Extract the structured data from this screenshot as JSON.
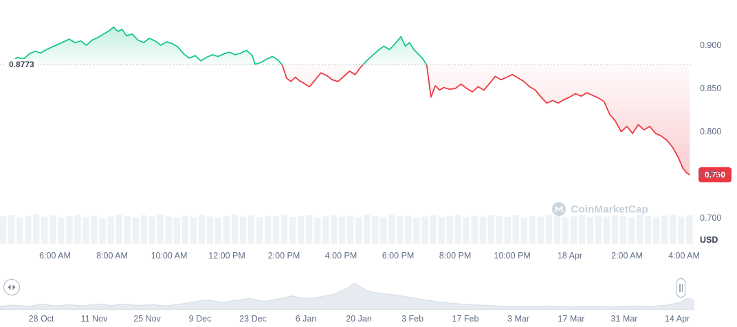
{
  "chart_data": {
    "type": "area",
    "title": "",
    "baseline": {
      "value": 0.8773,
      "label": "0.8773"
    },
    "current_price": {
      "value": 0.75,
      "label": "0.750"
    },
    "y_axis": {
      "ticks": [
        {
          "label": "0.900",
          "value": 0.9
        },
        {
          "label": "0.850",
          "value": 0.85
        },
        {
          "label": "0.800",
          "value": 0.8
        },
        {
          "label": "0.750",
          "value": 0.75
        },
        {
          "label": "0.700",
          "value": 0.7
        }
      ],
      "unit_label": "USD",
      "range": [
        0.695,
        0.925
      ]
    },
    "x_axis": {
      "labels": [
        "6:00 AM",
        "8:00 AM",
        "10:00 AM",
        "12:00 PM",
        "2:00 PM",
        "4:00 PM",
        "6:00 PM",
        "8:00 PM",
        "10:00 PM",
        "18 Apr",
        "2:00 AM",
        "4:00 AM"
      ],
      "hours": [
        2,
        4,
        6,
        8,
        10,
        12,
        14,
        16,
        18,
        20,
        22,
        24
      ]
    },
    "series": [
      {
        "name": "price",
        "points": [
          [
            0.3,
            0.8773
          ],
          [
            0.5,
            0.882
          ],
          [
            0.7,
            0.886
          ],
          [
            0.9,
            0.884
          ],
          [
            1.1,
            0.89
          ],
          [
            1.3,
            0.893
          ],
          [
            1.5,
            0.891
          ],
          [
            1.7,
            0.895
          ],
          [
            1.9,
            0.898
          ],
          [
            2.1,
            0.901
          ],
          [
            2.3,
            0.904
          ],
          [
            2.5,
            0.907
          ],
          [
            2.7,
            0.903
          ],
          [
            2.9,
            0.905
          ],
          [
            3.1,
            0.9
          ],
          [
            3.3,
            0.906
          ],
          [
            3.5,
            0.909
          ],
          [
            3.7,
            0.913
          ],
          [
            3.9,
            0.917
          ],
          [
            4.05,
            0.921
          ],
          [
            4.2,
            0.916
          ],
          [
            4.35,
            0.9185
          ],
          [
            4.5,
            0.911
          ],
          [
            4.7,
            0.913
          ],
          [
            4.9,
            0.906
          ],
          [
            5.1,
            0.903
          ],
          [
            5.3,
            0.908
          ],
          [
            5.5,
            0.905
          ],
          [
            5.7,
            0.9
          ],
          [
            5.9,
            0.904
          ],
          [
            6.1,
            0.902
          ],
          [
            6.3,
            0.898
          ],
          [
            6.5,
            0.89
          ],
          [
            6.7,
            0.885
          ],
          [
            6.9,
            0.888
          ],
          [
            7.1,
            0.882
          ],
          [
            7.3,
            0.886
          ],
          [
            7.5,
            0.889
          ],
          [
            7.7,
            0.887
          ],
          [
            7.9,
            0.89
          ],
          [
            8.1,
            0.892
          ],
          [
            8.3,
            0.889
          ],
          [
            8.5,
            0.891
          ],
          [
            8.7,
            0.894
          ],
          [
            8.9,
            0.888
          ],
          [
            9.0,
            0.878
          ],
          [
            9.2,
            0.88
          ],
          [
            9.4,
            0.884
          ],
          [
            9.6,
            0.887
          ],
          [
            9.8,
            0.883
          ],
          [
            9.95,
            0.877
          ],
          [
            10.1,
            0.862
          ],
          [
            10.25,
            0.858
          ],
          [
            10.4,
            0.863
          ],
          [
            10.55,
            0.859
          ],
          [
            10.7,
            0.856
          ],
          [
            10.9,
            0.852
          ],
          [
            11.1,
            0.86
          ],
          [
            11.3,
            0.868
          ],
          [
            11.5,
            0.865
          ],
          [
            11.7,
            0.86
          ],
          [
            11.9,
            0.858
          ],
          [
            12.1,
            0.864
          ],
          [
            12.3,
            0.87
          ],
          [
            12.5,
            0.866
          ],
          [
            12.7,
            0.875
          ],
          [
            12.9,
            0.882
          ],
          [
            13.1,
            0.888
          ],
          [
            13.3,
            0.894
          ],
          [
            13.5,
            0.899
          ],
          [
            13.7,
            0.895
          ],
          [
            13.9,
            0.902
          ],
          [
            14.1,
            0.91
          ],
          [
            14.25,
            0.899
          ],
          [
            14.4,
            0.903
          ],
          [
            14.55,
            0.895
          ],
          [
            14.7,
            0.89
          ],
          [
            14.85,
            0.885
          ],
          [
            15.0,
            0.877
          ],
          [
            15.15,
            0.84
          ],
          [
            15.3,
            0.853
          ],
          [
            15.45,
            0.848
          ],
          [
            15.6,
            0.851
          ],
          [
            15.8,
            0.849
          ],
          [
            16.0,
            0.85
          ],
          [
            16.2,
            0.855
          ],
          [
            16.4,
            0.85
          ],
          [
            16.6,
            0.846
          ],
          [
            16.8,
            0.852
          ],
          [
            17.0,
            0.848
          ],
          [
            17.2,
            0.856
          ],
          [
            17.4,
            0.864
          ],
          [
            17.6,
            0.86
          ],
          [
            17.8,
            0.863
          ],
          [
            18.0,
            0.866
          ],
          [
            18.2,
            0.862
          ],
          [
            18.4,
            0.858
          ],
          [
            18.6,
            0.852
          ],
          [
            18.8,
            0.848
          ],
          [
            19.0,
            0.84
          ],
          [
            19.2,
            0.833
          ],
          [
            19.4,
            0.836
          ],
          [
            19.6,
            0.833
          ],
          [
            19.8,
            0.837
          ],
          [
            20.0,
            0.84
          ],
          [
            20.2,
            0.844
          ],
          [
            20.4,
            0.841
          ],
          [
            20.6,
            0.845
          ],
          [
            20.8,
            0.842
          ],
          [
            21.0,
            0.839
          ],
          [
            21.2,
            0.835
          ],
          [
            21.4,
            0.82
          ],
          [
            21.6,
            0.812
          ],
          [
            21.8,
            0.8
          ],
          [
            22.0,
            0.806
          ],
          [
            22.2,
            0.798
          ],
          [
            22.4,
            0.808
          ],
          [
            22.6,
            0.802
          ],
          [
            22.8,
            0.806
          ],
          [
            23.0,
            0.798
          ],
          [
            23.2,
            0.795
          ],
          [
            23.4,
            0.79
          ],
          [
            23.6,
            0.782
          ],
          [
            23.8,
            0.77
          ],
          [
            23.95,
            0.758
          ],
          [
            24.1,
            0.752
          ],
          [
            24.2,
            0.75
          ]
        ]
      }
    ],
    "volume_bars": [
      0.88,
      0.92,
      0.85,
      0.9,
      0.95,
      0.87,
      0.91,
      0.84,
      0.89,
      0.93,
      0.86,
      0.9,
      0.82,
      0.88,
      0.94,
      0.89,
      0.85,
      0.91,
      0.87,
      0.93,
      0.88,
      0.84,
      0.9,
      0.86,
      0.92,
      0.88,
      0.83,
      0.89,
      0.94,
      0.87,
      0.91,
      0.85,
      0.9,
      0.88,
      0.93,
      0.86,
      0.89,
      0.92,
      0.84,
      0.88,
      0.91,
      0.87,
      0.9,
      0.85,
      0.93,
      0.89,
      0.86,
      0.92,
      0.88,
      0.9,
      0.84,
      0.87,
      0.91,
      0.86,
      0.89,
      0.93,
      0.85,
      0.9,
      0.87,
      0.92,
      0.88,
      0.86,
      0.91,
      0.84,
      0.89,
      0.87,
      0.93,
      0.9,
      0.85,
      0.88,
      0.92,
      0.86,
      0.9,
      0.87,
      0.91,
      0.88,
      0.85,
      0.92,
      0.89,
      0.86,
      0.9,
      0.93,
      0.87,
      0.91
    ],
    "colors": {
      "up": "#16c784",
      "down": "#ea3943",
      "baseline": "#b0b8c1",
      "volume": "#eff2f5",
      "badge_bg": "#ea3943"
    }
  },
  "navigator": {
    "date_labels": [
      "28 Oct",
      "11 Nov",
      "25 Nov",
      "9 Dec",
      "23 Dec",
      "6 Jan",
      "20 Jan",
      "3 Feb",
      "17 Feb",
      "3 Mar",
      "17 Mar",
      "31 Mar",
      "14 Apr"
    ],
    "points": [
      [
        0.0,
        0.1
      ],
      [
        0.02,
        0.13
      ],
      [
        0.04,
        0.1
      ],
      [
        0.06,
        0.15
      ],
      [
        0.08,
        0.11
      ],
      [
        0.1,
        0.14
      ],
      [
        0.12,
        0.11
      ],
      [
        0.14,
        0.16
      ],
      [
        0.16,
        0.12
      ],
      [
        0.18,
        0.15
      ],
      [
        0.2,
        0.12
      ],
      [
        0.22,
        0.14
      ],
      [
        0.24,
        0.11
      ],
      [
        0.26,
        0.16
      ],
      [
        0.28,
        0.22
      ],
      [
        0.3,
        0.27
      ],
      [
        0.32,
        0.2
      ],
      [
        0.34,
        0.26
      ],
      [
        0.36,
        0.31
      ],
      [
        0.38,
        0.23
      ],
      [
        0.4,
        0.29
      ],
      [
        0.42,
        0.38
      ],
      [
        0.44,
        0.3
      ],
      [
        0.46,
        0.35
      ],
      [
        0.48,
        0.42
      ],
      [
        0.5,
        0.58
      ],
      [
        0.51,
        0.72
      ],
      [
        0.52,
        0.62
      ],
      [
        0.53,
        0.5
      ],
      [
        0.55,
        0.44
      ],
      [
        0.57,
        0.4
      ],
      [
        0.59,
        0.34
      ],
      [
        0.61,
        0.28
      ],
      [
        0.63,
        0.22
      ],
      [
        0.65,
        0.18
      ],
      [
        0.67,
        0.15
      ],
      [
        0.7,
        0.12
      ],
      [
        0.73,
        0.1
      ],
      [
        0.76,
        0.09
      ],
      [
        0.79,
        0.11
      ],
      [
        0.82,
        0.08
      ],
      [
        0.85,
        0.1
      ],
      [
        0.88,
        0.08
      ],
      [
        0.91,
        0.11
      ],
      [
        0.94,
        0.1
      ],
      [
        0.96,
        0.13
      ],
      [
        0.98,
        0.2
      ],
      [
        0.99,
        0.32
      ],
      [
        1.0,
        0.26
      ]
    ]
  },
  "watermark": {
    "label": "CoinMarketCap"
  }
}
